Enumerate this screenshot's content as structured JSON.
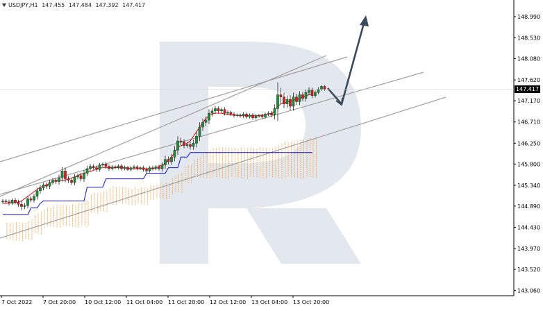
{
  "header": {
    "symbol": "USDJPY,H1",
    "open": "147.455",
    "high": "147.484",
    "low": "147.392",
    "close": "147.417"
  },
  "current_price_label": "147.417",
  "colors": {
    "bull_candle": "#1f8a3a",
    "bear_candle": "#d81b1b",
    "tenkan": "#e01010",
    "kijun": "#1010e0",
    "cloud": "#f0a050",
    "trend_lines": "#a0a0a0",
    "forecast_arrow": "#3a4a5c",
    "watermark": "#e3e8ee"
  },
  "chart_data": {
    "type": "candlestick",
    "instrument": "USDJPY",
    "timeframe": "H1",
    "y_axis": {
      "ticks": [
        "148.990",
        "148.530",
        "148.080",
        "147.620",
        "147.170",
        "146.710",
        "146.250",
        "145.800",
        "145.340",
        "144.890",
        "144.430",
        "143.970",
        "143.520",
        "143.060"
      ],
      "ylim": [
        142.95,
        149.35
      ]
    },
    "x_axis": {
      "ticks": [
        "7 Oct 2022",
        "7 Oct 20:00",
        "10 Oct 12:00",
        "11 Oct 04:00",
        "11 Oct 20:00",
        "12 Oct 12:00",
        "13 Oct 04:00",
        "13 Oct 20:00"
      ]
    },
    "candles_close": [
      145.0,
      144.98,
      144.95,
      145.02,
      144.97,
      144.93,
      144.88,
      144.9,
      145.05,
      145.02,
      145.1,
      145.22,
      145.28,
      145.35,
      145.32,
      145.4,
      145.45,
      145.42,
      145.5,
      145.65,
      145.48,
      145.45,
      145.4,
      145.52,
      145.55,
      145.48,
      145.6,
      145.7,
      145.75,
      145.72,
      145.68,
      145.78,
      145.8,
      145.75,
      145.7,
      145.74,
      145.72,
      145.76,
      145.7,
      145.73,
      145.68,
      145.72,
      145.74,
      145.7,
      145.72,
      145.68,
      145.65,
      145.72,
      145.7,
      145.74,
      145.7,
      145.78,
      145.9,
      145.85,
      145.95,
      146.1,
      146.3,
      146.28,
      146.2,
      146.22,
      146.18,
      146.25,
      146.4,
      146.6,
      146.7,
      146.75,
      146.9,
      146.95,
      147.0,
      146.95,
      146.98,
      146.9,
      146.92,
      146.88,
      146.85,
      146.86,
      146.84,
      146.88,
      146.82,
      146.86,
      146.8,
      146.84,
      146.85,
      146.82,
      146.88,
      146.9,
      146.86,
      147.0,
      147.3,
      147.25,
      147.1,
      147.2,
      147.05,
      147.25,
      147.15,
      147.3,
      147.22,
      147.35,
      147.4,
      147.28,
      147.35,
      147.42,
      147.48,
      147.42
    ],
    "candles_range": [
      0.14,
      0.12,
      0.16,
      0.12,
      0.14,
      0.2,
      0.26,
      0.18,
      0.2,
      0.16,
      0.18,
      0.22,
      0.2,
      0.16,
      0.18,
      0.2,
      0.16,
      0.18,
      0.22,
      0.26,
      0.24,
      0.2,
      0.18,
      0.2,
      0.16,
      0.18,
      0.22,
      0.2,
      0.18,
      0.14,
      0.16,
      0.14,
      0.12,
      0.16,
      0.14,
      0.12,
      0.1,
      0.12,
      0.14,
      0.12,
      0.1,
      0.12,
      0.14,
      0.12,
      0.1,
      0.14,
      0.16,
      0.12,
      0.14,
      0.12,
      0.16,
      0.2,
      0.26,
      0.2,
      0.22,
      0.3,
      0.34,
      0.24,
      0.2,
      0.18,
      0.22,
      0.24,
      0.3,
      0.34,
      0.28,
      0.26,
      0.3,
      0.24,
      0.2,
      0.16,
      0.14,
      0.16,
      0.14,
      0.12,
      0.14,
      0.12,
      0.12,
      0.14,
      0.12,
      0.12,
      0.14,
      0.12,
      0.12,
      0.14,
      0.12,
      0.14,
      0.16,
      0.3,
      0.9,
      0.5,
      0.3,
      0.28,
      0.3,
      0.32,
      0.24,
      0.26,
      0.2,
      0.22,
      0.2,
      0.18,
      0.14,
      0.14,
      0.12,
      0.1
    ],
    "tenkan_sen": [
      144.95,
      144.95,
      144.96,
      144.96,
      144.97,
      144.98,
      145.0,
      145.05,
      145.1,
      145.15,
      145.2,
      145.25,
      145.3,
      145.32,
      145.35,
      145.38,
      145.42,
      145.45,
      145.45,
      145.45,
      145.45,
      145.48,
      145.5,
      145.52,
      145.55,
      145.58,
      145.6,
      145.62,
      145.64,
      145.66,
      145.7,
      145.72,
      145.72,
      145.72,
      145.72,
      145.72,
      145.72,
      145.72,
      145.72,
      145.72,
      145.71,
      145.7,
      145.7,
      145.7,
      145.7,
      145.7,
      145.7,
      145.7,
      145.7,
      145.72,
      145.75,
      145.78,
      145.82,
      145.88,
      145.95,
      146.05,
      146.15,
      146.2,
      146.22,
      146.25,
      146.3,
      146.4,
      146.5,
      146.6,
      146.7,
      146.78,
      146.85,
      146.88,
      146.9,
      146.9,
      146.9,
      146.88,
      146.88,
      146.86,
      146.86,
      146.85,
      146.85,
      146.85,
      146.85,
      146.85,
      146.85,
      146.85,
      146.85,
      146.86,
      146.86,
      146.88,
      146.9,
      146.95,
      147.05,
      147.1,
      147.12,
      147.15,
      147.15,
      147.18,
      147.2,
      147.22,
      147.25,
      147.28,
      147.3,
      147.32
    ],
    "kijun_sen": [
      144.7,
      144.7,
      144.7,
      144.7,
      144.7,
      144.7,
      144.7,
      144.7,
      144.7,
      144.85,
      144.85,
      144.85,
      144.95,
      145.0,
      145.0,
      145.0,
      145.0,
      145.0,
      145.0,
      145.0,
      145.0,
      145.0,
      145.0,
      145.0,
      145.0,
      145.0,
      145.0,
      145.3,
      145.3,
      145.3,
      145.3,
      145.3,
      145.3,
      145.48,
      145.48,
      145.48,
      145.48,
      145.48,
      145.48,
      145.48,
      145.48,
      145.48,
      145.48,
      145.48,
      145.48,
      145.48,
      145.6,
      145.6,
      145.6,
      145.6,
      145.6,
      145.6,
      145.6,
      145.72,
      145.72,
      145.72,
      145.72,
      145.95,
      145.95,
      145.95,
      146.05,
      146.05,
      146.05,
      146.05,
      146.05,
      146.05,
      146.05,
      146.05,
      146.05,
      146.05,
      146.05,
      146.05,
      146.05,
      146.05,
      146.05,
      146.05,
      146.05,
      146.05,
      146.05,
      146.05,
      146.05,
      146.05,
      146.05,
      146.05,
      146.05,
      146.05,
      146.05,
      146.05,
      146.05,
      146.05,
      146.05,
      146.05,
      146.05,
      146.05,
      146.05,
      146.05,
      146.05,
      146.05,
      146.05,
      146.05
    ]
  }
}
